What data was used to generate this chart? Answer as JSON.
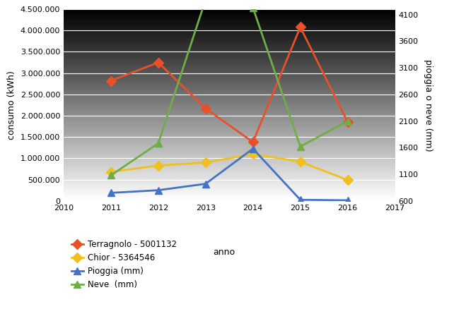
{
  "years": [
    2011,
    2012,
    2013,
    2014,
    2015,
    2016
  ],
  "terragnolo": [
    2820000,
    3250000,
    2170000,
    1380000,
    4080000,
    1850000
  ],
  "chior": [
    680000,
    830000,
    900000,
    1100000,
    920000,
    490000
  ],
  "pioggia_mm": [
    750,
    800,
    920,
    1580,
    620,
    610
  ],
  "neve_mm": [
    1080,
    1680,
    4380,
    4230,
    1620,
    2100
  ],
  "left_ylim": [
    0,
    4500000
  ],
  "right_ylim": [
    600,
    4200
  ],
  "left_yticks": [
    0,
    500000,
    1000000,
    1500000,
    2000000,
    2500000,
    3000000,
    3500000,
    4000000,
    4500000
  ],
  "right_yticks": [
    600,
    1100,
    1600,
    2100,
    2600,
    3100,
    3600,
    4100
  ],
  "xlim": [
    2010,
    2017
  ],
  "xticks": [
    2010,
    2011,
    2012,
    2013,
    2014,
    2015,
    2016,
    2017
  ],
  "color_terragnolo": "#e8502a",
  "color_chior": "#f0c020",
  "color_pioggia": "#4472c4",
  "color_neve": "#70ad47",
  "ylabel_left": "consumo (kWh)",
  "ylabel_right": "pioggia o neve (mm)",
  "xlabel": "anno",
  "legend_terragnolo": "Terragnolo - 5001132",
  "legend_chior": "Chior - 5364546",
  "legend_pioggia": "Pioggia (mm)",
  "legend_neve": "Neve  (mm)"
}
